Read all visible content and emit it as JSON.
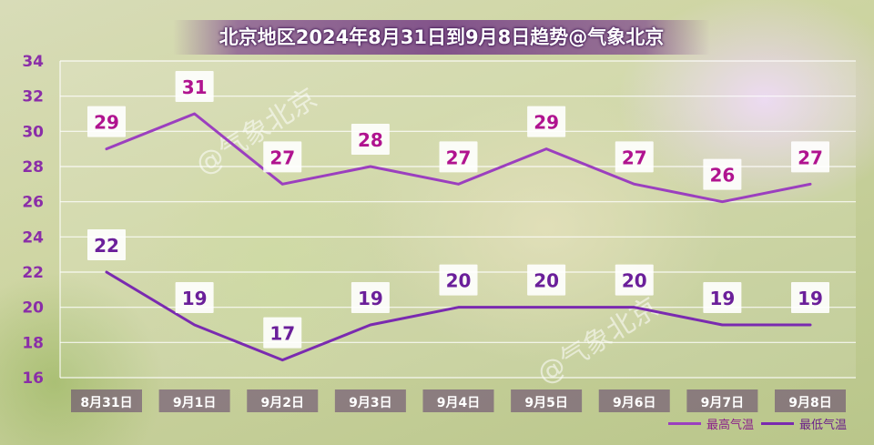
{
  "watermark": "@气象北京",
  "chart_data": {
    "type": "line",
    "title": "北京地区2024年8月31日到9月8日趋势@气象北京",
    "categories": [
      "8月31日",
      "9月1日",
      "9月2日",
      "9月3日",
      "9月4日",
      "9月5日",
      "9月6日",
      "9月7日",
      "9月8日"
    ],
    "yticks": [
      "16",
      "18",
      "20",
      "22",
      "24",
      "26",
      "28",
      "30",
      "32",
      "34"
    ],
    "ylim": [
      16,
      34
    ],
    "grid": true,
    "legend_position": "bottom-right",
    "series": [
      {
        "name": "最高气温",
        "color": "#9b3fbf",
        "label_color": "#b0138f",
        "values": [
          29,
          31,
          27,
          28,
          27,
          29,
          27,
          26,
          27
        ]
      },
      {
        "name": "最低气温",
        "color": "#7a2ab0",
        "label_color": "#6b1f9a",
        "values": [
          22,
          19,
          17,
          19,
          20,
          20,
          20,
          19,
          19
        ]
      }
    ]
  }
}
